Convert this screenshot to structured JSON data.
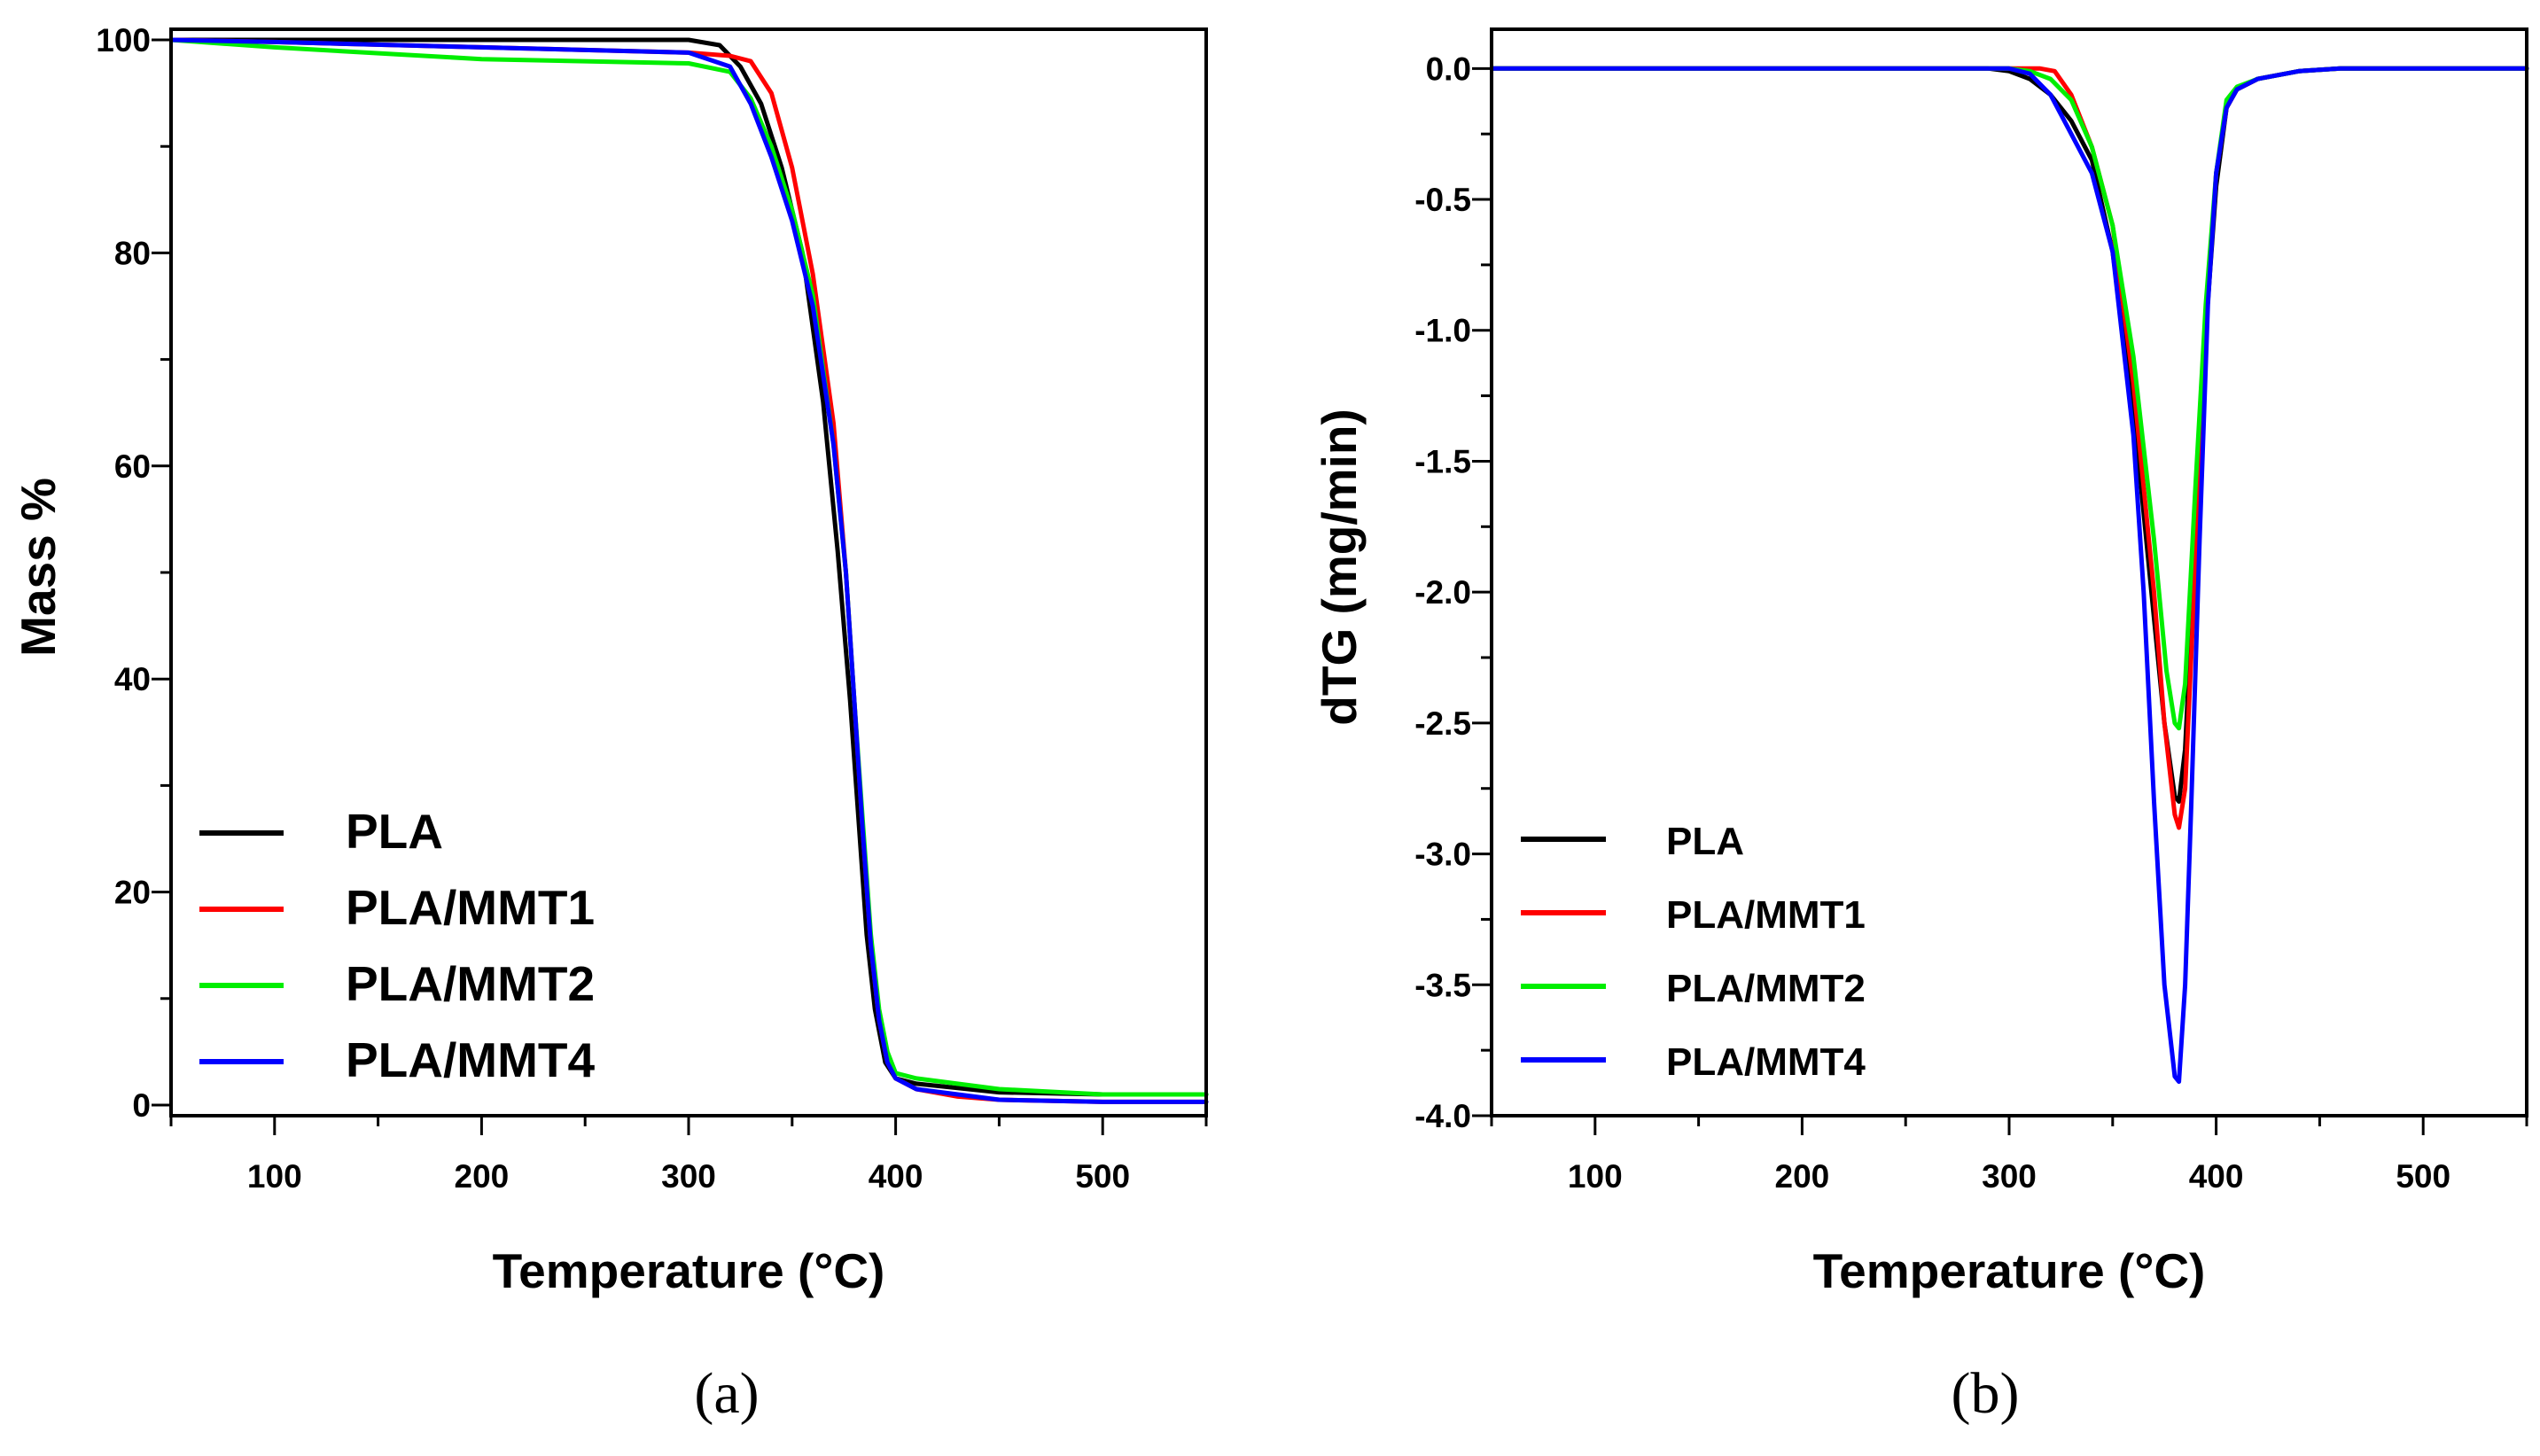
{
  "chart_data": [
    {
      "id": "a",
      "type": "line",
      "caption": "(a)",
      "xlabel": "Temperature (°C)",
      "ylabel": "Mass %",
      "xlim": [
        50,
        550
      ],
      "ylim": [
        -1,
        101
      ],
      "xticks": [
        100,
        200,
        300,
        400,
        500
      ],
      "yticks": [
        0,
        20,
        40,
        60,
        80,
        100
      ],
      "xtick_labels": [
        "100",
        "200",
        "300",
        "400",
        "500"
      ],
      "ytick_labels": [
        "0",
        "20",
        "40",
        "60",
        "80",
        "100"
      ],
      "legend_position": "bottom-left",
      "series": [
        {
          "name": "PLA",
          "color": "#000000",
          "x": [
            50,
            100,
            200,
            300,
            315,
            325,
            335,
            345,
            355,
            365,
            372,
            378,
            382,
            386,
            390,
            395,
            400,
            410,
            450,
            500,
            550
          ],
          "y": [
            100,
            100,
            100,
            100,
            99.5,
            97.5,
            94,
            88,
            80,
            66,
            52,
            38,
            27,
            16,
            9,
            4,
            2.5,
            2,
            1.2,
            1,
            1
          ]
        },
        {
          "name": "PLA/MMT1",
          "color": "#ff0000",
          "x": [
            50,
            100,
            200,
            300,
            320,
            330,
            340,
            350,
            360,
            370,
            376,
            380,
            384,
            388,
            392,
            396,
            400,
            410,
            430,
            450,
            500,
            550
          ],
          "y": [
            100,
            99.8,
            99.3,
            98.8,
            98.5,
            98,
            95,
            88,
            78,
            64,
            50,
            38,
            26,
            15,
            8,
            4,
            2.5,
            1.5,
            0.8,
            0.5,
            0.3,
            0.3
          ]
        },
        {
          "name": "PLA/MMT2",
          "color": "#00ee00",
          "x": [
            50,
            100,
            200,
            250,
            300,
            320,
            330,
            340,
            350,
            360,
            370,
            376,
            380,
            384,
            388,
            392,
            396,
            400,
            410,
            450,
            500,
            550
          ],
          "y": [
            100,
            99.3,
            98.2,
            98,
            97.8,
            97,
            94.5,
            90,
            84,
            76,
            62,
            50,
            38,
            27,
            16,
            9,
            5,
            3,
            2.5,
            1.5,
            1,
            1
          ]
        },
        {
          "name": "PLA/MMT4",
          "color": "#0000ff",
          "x": [
            50,
            100,
            200,
            300,
            320,
            330,
            340,
            350,
            360,
            370,
            376,
            380,
            384,
            388,
            392,
            396,
            400,
            410,
            450,
            500,
            550
          ],
          "y": [
            100,
            99.8,
            99.3,
            98.8,
            97.5,
            94,
            89,
            83,
            75,
            62,
            50,
            38,
            26,
            15,
            8,
            4,
            2.5,
            1.5,
            0.5,
            0.3,
            0.3
          ]
        }
      ]
    },
    {
      "id": "b",
      "type": "line",
      "caption": "(b)",
      "xlabel": "Temperature (°C)",
      "ylabel": "dTG (mg/min)",
      "xlim": [
        50,
        550
      ],
      "ylim": [
        -4.0,
        0.15
      ],
      "xticks": [
        100,
        200,
        300,
        400,
        500
      ],
      "yticks": [
        0.0,
        -0.5,
        -1.0,
        -1.5,
        -2.0,
        -2.5,
        -3.0,
        -3.5,
        -4.0
      ],
      "xtick_labels": [
        "100",
        "200",
        "300",
        "400",
        "500"
      ],
      "ytick_labels": [
        "0.0",
        "-0.5",
        "-1.0",
        "-1.5",
        "-2.0",
        "-2.5",
        "-3.0",
        "-3.5",
        "-4.0"
      ],
      "legend_position": "bottom-left",
      "series": [
        {
          "name": "PLA",
          "color": "#000000",
          "x": [
            50,
            200,
            290,
            300,
            310,
            320,
            330,
            340,
            350,
            360,
            370,
            375,
            380,
            382,
            385,
            390,
            395,
            400,
            405,
            410,
            420,
            440,
            460,
            550
          ],
          "y": [
            0,
            0,
            0,
            -0.01,
            -0.04,
            -0.1,
            -0.2,
            -0.35,
            -0.7,
            -1.3,
            -2.1,
            -2.5,
            -2.78,
            -2.8,
            -2.6,
            -1.8,
            -1.0,
            -0.45,
            -0.15,
            -0.08,
            -0.04,
            -0.01,
            0,
            0
          ]
        },
        {
          "name": "PLA/MMT1",
          "color": "#ff0000",
          "x": [
            50,
            200,
            300,
            315,
            322,
            330,
            340,
            350,
            360,
            370,
            375,
            380,
            382,
            385,
            390,
            395,
            400,
            405,
            410,
            420,
            440,
            460,
            550
          ],
          "y": [
            0,
            0,
            0,
            0,
            -0.01,
            -0.1,
            -0.3,
            -0.6,
            -1.2,
            -2.0,
            -2.5,
            -2.85,
            -2.9,
            -2.75,
            -1.9,
            -1.0,
            -0.4,
            -0.15,
            -0.08,
            -0.04,
            -0.01,
            0,
            0
          ]
        },
        {
          "name": "PLA/MMT2",
          "color": "#00ee00",
          "x": [
            50,
            200,
            300,
            310,
            320,
            330,
            340,
            350,
            360,
            370,
            376,
            380,
            382,
            385,
            390,
            395,
            400,
            405,
            410,
            420,
            440,
            460,
            550
          ],
          "y": [
            0,
            0,
            0,
            -0.01,
            -0.04,
            -0.12,
            -0.3,
            -0.6,
            -1.1,
            -1.8,
            -2.3,
            -2.5,
            -2.52,
            -2.35,
            -1.6,
            -0.9,
            -0.4,
            -0.12,
            -0.07,
            -0.04,
            -0.01,
            0,
            0
          ]
        },
        {
          "name": "PLA/MMT4",
          "color": "#0000ff",
          "x": [
            50,
            200,
            300,
            310,
            320,
            330,
            340,
            350,
            360,
            365,
            370,
            375,
            380,
            382,
            385,
            388,
            392,
            396,
            400,
            405,
            410,
            420,
            440,
            460,
            550
          ],
          "y": [
            0,
            0,
            0,
            -0.02,
            -0.1,
            -0.25,
            -0.4,
            -0.7,
            -1.4,
            -2.0,
            -2.8,
            -3.5,
            -3.85,
            -3.87,
            -3.5,
            -2.8,
            -1.8,
            -0.9,
            -0.4,
            -0.15,
            -0.08,
            -0.04,
            -0.01,
            0,
            0
          ]
        }
      ]
    }
  ]
}
